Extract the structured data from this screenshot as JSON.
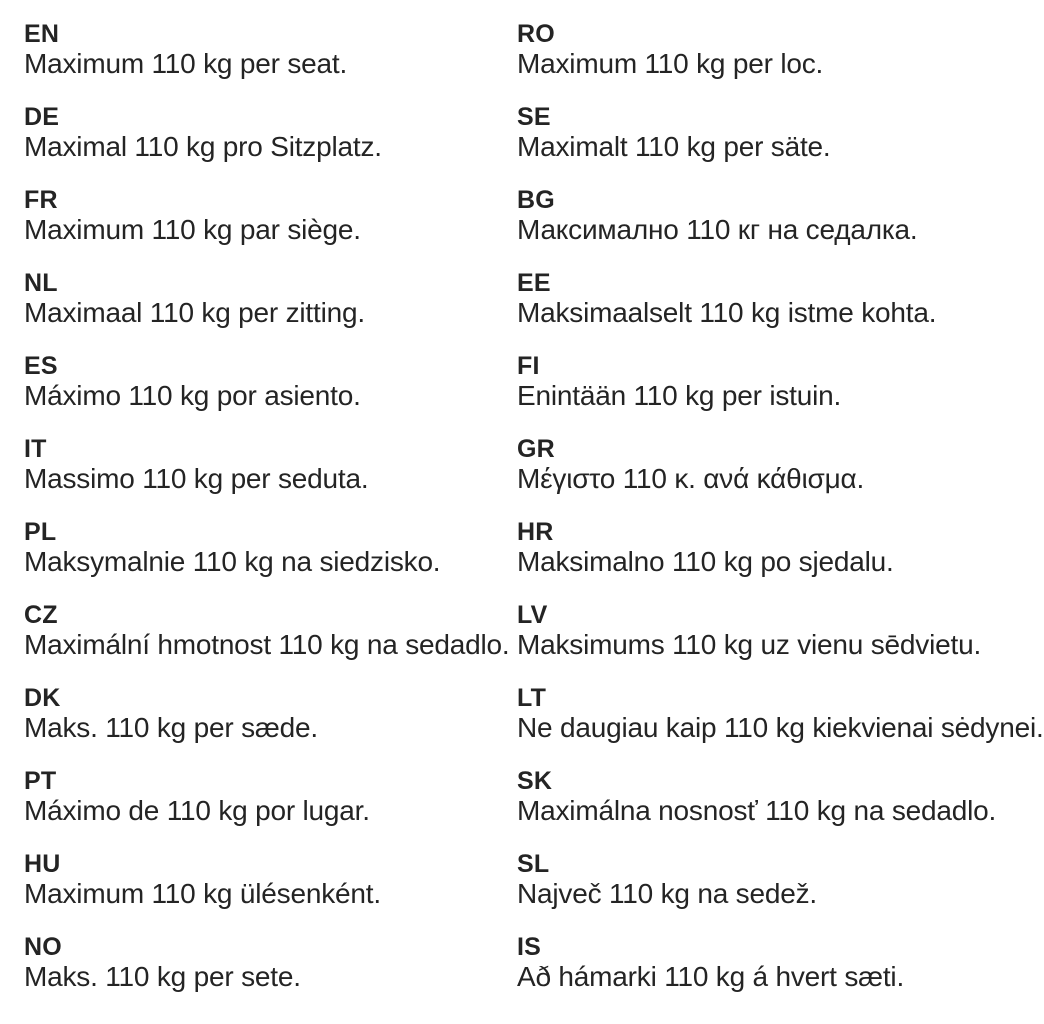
{
  "page": {
    "background_color": "#ffffff",
    "text_color": "#242424",
    "description_value": "110"
  },
  "columns": {
    "left": [
      {
        "code": "EN",
        "text": "Maximum 110 kg per seat."
      },
      {
        "code": "DE",
        "text": "Maximal 110 kg pro Sitzplatz."
      },
      {
        "code": "FR",
        "text": "Maximum 110 kg par siège."
      },
      {
        "code": "NL",
        "text": "Maximaal 110 kg per zitting."
      },
      {
        "code": "ES",
        "text": "Máximo 110 kg por asiento."
      },
      {
        "code": "IT",
        "text": "Massimo 110 kg per seduta."
      },
      {
        "code": "PL",
        "text": "Maksymalnie 110 kg na siedzisko."
      },
      {
        "code": "CZ",
        "text": "Maximální hmotnost 110 kg na sedadlo."
      },
      {
        "code": "DK",
        "text": "Maks. 110 kg per sæde."
      },
      {
        "code": "PT",
        "text": "Máximo de 110 kg por lugar."
      },
      {
        "code": "HU",
        "text": "Maximum 110 kg ülésenként."
      },
      {
        "code": "NO",
        "text": "Maks. 110 kg per sete."
      }
    ],
    "right": [
      {
        "code": "RO",
        "text": "Maximum 110 kg per loc."
      },
      {
        "code": "SE",
        "text": "Maximalt 110 kg per säte."
      },
      {
        "code": "BG",
        "text": "Максимално 110 кг на седалка."
      },
      {
        "code": "EE",
        "text": "Maksimaalselt 110 kg istme kohta."
      },
      {
        "code": "FI",
        "text": "Enintään 110 kg per istuin."
      },
      {
        "code": "GR",
        "text": "Μέγιστο 110 κ. ανά κάθισμα."
      },
      {
        "code": "HR",
        "text": "Maksimalno 110 kg po sjedalu."
      },
      {
        "code": "LV",
        "text": "Maksimums 110 kg uz vienu sēdvietu."
      },
      {
        "code": "LT",
        "text": "Ne daugiau kaip 110 kg kiekvienai sėdynei."
      },
      {
        "code": "SK",
        "text": "Maximálna nosnosť 110 kg na sedadlo."
      },
      {
        "code": "SL",
        "text": "Največ 110 kg na sedež."
      },
      {
        "code": "IS",
        "text": "Að hámarki 110 kg á hvert sæti."
      }
    ]
  }
}
